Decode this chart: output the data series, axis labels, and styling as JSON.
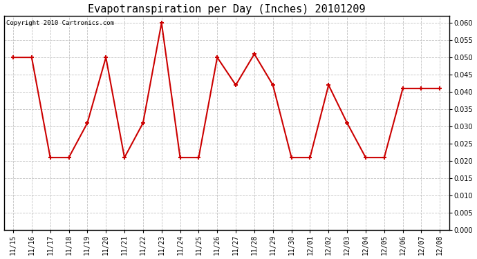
{
  "title": "Evapotranspiration per Day (Inches) 20101209",
  "copyright_text": "Copyright 2010 Cartronics.com",
  "x_labels": [
    "11/15",
    "11/16",
    "11/17",
    "11/18",
    "11/19",
    "11/20",
    "11/21",
    "11/22",
    "11/23",
    "11/24",
    "11/25",
    "11/26",
    "11/27",
    "11/28",
    "11/29",
    "11/30",
    "12/01",
    "12/02",
    "12/03",
    "12/04",
    "12/05",
    "12/06",
    "12/07",
    "12/08"
  ],
  "y_values": [
    0.05,
    0.05,
    0.021,
    0.021,
    0.031,
    0.05,
    0.021,
    0.031,
    0.06,
    0.021,
    0.021,
    0.05,
    0.042,
    0.051,
    0.042,
    0.021,
    0.021,
    0.042,
    0.031,
    0.021,
    0.021,
    0.041,
    0.041,
    0.041
  ],
  "line_color": "#cc0000",
  "marker": "+",
  "marker_size": 5,
  "marker_edge_width": 1.5,
  "line_width": 1.5,
  "background_color": "#ffffff",
  "plot_bg_color": "#ffffff",
  "grid_color": "#bbbbbb",
  "grid_style": "--",
  "ylim": [
    0.0,
    0.062
  ],
  "ytick_min": 0.0,
  "ytick_max": 0.06,
  "ytick_step": 0.005,
  "title_fontsize": 11,
  "tick_fontsize": 7,
  "copyright_fontsize": 6.5,
  "border_color": "#000000"
}
